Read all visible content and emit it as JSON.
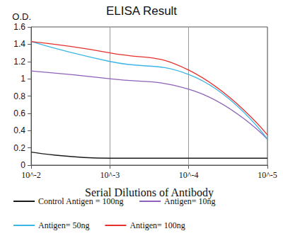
{
  "chart_data": {
    "type": "line",
    "title": "ELISA Result",
    "x_label": "Serial Dilutions of Antibody",
    "y_label": "O.D.",
    "x": [
      0.01,
      0.001,
      0.0001,
      1e-05
    ],
    "series": [
      {
        "name": "Control Antigen = 100ng",
        "color": "#1a1a1a",
        "values": [
          0.15,
          0.08,
          0.08,
          0.08
        ]
      },
      {
        "name": "Antigen= 10ng",
        "color": "#8d62b8",
        "values": [
          1.09,
          1.0,
          0.88,
          0.3
        ]
      },
      {
        "name": "Antigen= 50ng",
        "color": "#3cb6e6",
        "values": [
          1.43,
          1.2,
          1.05,
          0.3
        ]
      },
      {
        "name": "Antigen= 100ng",
        "color": "#e5312e",
        "values": [
          1.43,
          1.3,
          1.1,
          0.35
        ]
      }
    ],
    "log": "x",
    "xlim": [
      0.01,
      1e-05
    ],
    "xticks": [
      {
        "value": 0.01,
        "label": "10^-2"
      },
      {
        "value": 0.001,
        "label": "10^-3"
      },
      {
        "value": 0.0001,
        "label": "10^-4"
      },
      {
        "value": 1e-05,
        "label": "10^-5"
      }
    ],
    "ylim": [
      0,
      1.6
    ],
    "yticks": [
      0,
      0.2,
      0.4,
      0.6,
      0.8,
      1,
      1.2,
      1.4,
      1.6
    ],
    "grid": true,
    "legend": "bottom"
  }
}
